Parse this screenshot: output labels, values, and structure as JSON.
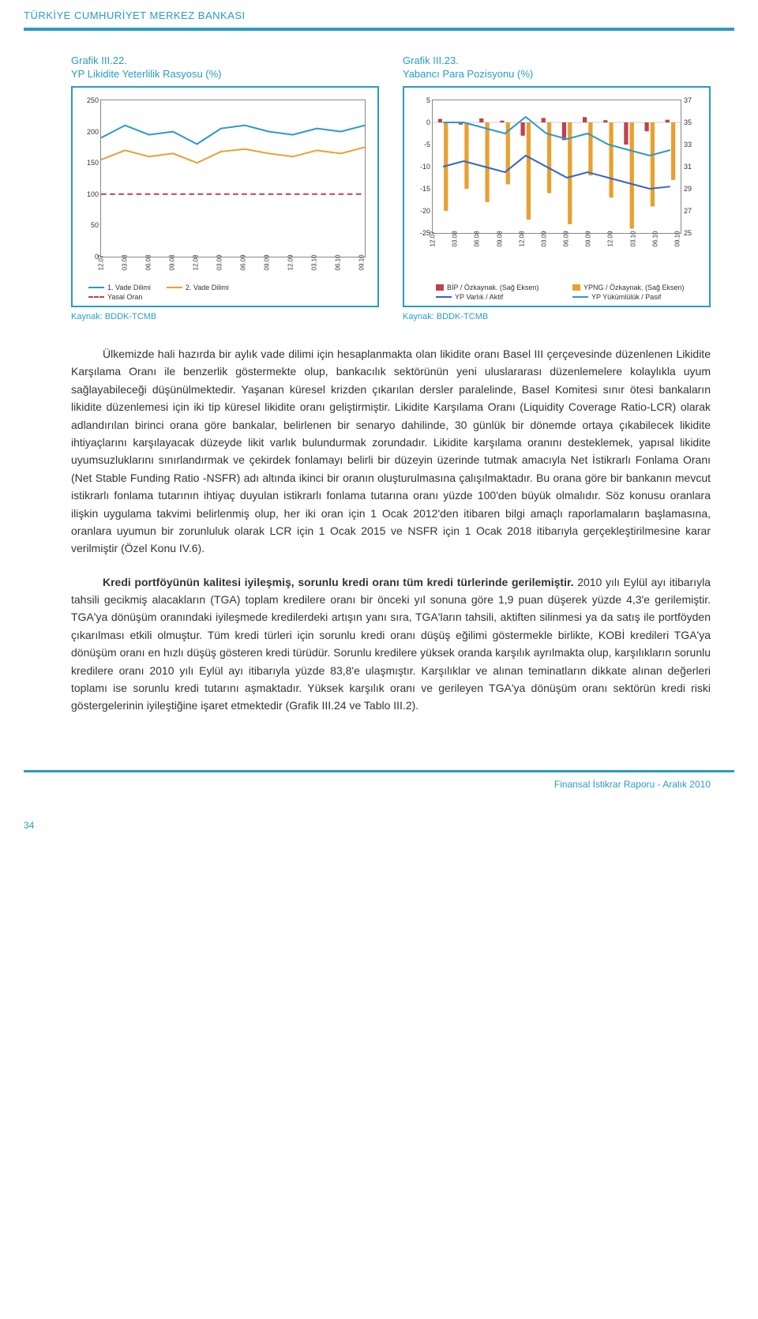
{
  "header": {
    "text": "TÜRKİYE CUMHURİYET MERKEZ BANKASI"
  },
  "chartLeft": {
    "titleMain": "Grafik III.22.",
    "titleSub": "YP Likidite Yeterlilik Rasyosu (%)",
    "type": "line",
    "ylim": [
      0,
      250
    ],
    "yticks": [
      "250",
      "200",
      "150",
      "100",
      "50",
      "0"
    ],
    "xlabels": [
      "12.07",
      "03.08",
      "06.08",
      "09.08",
      "12.08",
      "03.09",
      "06.09",
      "09.09",
      "12.09",
      "03.10",
      "06.10",
      "09.10"
    ],
    "series": [
      {
        "name": "1. Vade Dilimi",
        "color": "#2a9bc7",
        "values": [
          190,
          210,
          195,
          200,
          180,
          205,
          210,
          200,
          195,
          205,
          200,
          210
        ],
        "dashed": false
      },
      {
        "name": "2. Vade Dilimi",
        "color": "#e8a030",
        "values": [
          155,
          170,
          160,
          165,
          150,
          168,
          172,
          165,
          160,
          170,
          165,
          175
        ],
        "dashed": false
      },
      {
        "name": "Yasal Oran",
        "color": "#c04050",
        "values": [
          100,
          100,
          100,
          100,
          100,
          100,
          100,
          100,
          100,
          100,
          100,
          100
        ],
        "dashed": true
      }
    ],
    "legend": [
      {
        "label": "1. Vade Dilimi",
        "color": "#2a9bc7",
        "dashed": false
      },
      {
        "label": "2. Vade Dilimi",
        "color": "#e8a030",
        "dashed": false
      },
      {
        "label": "Yasal Oran",
        "color": "#c04050",
        "dashed": true
      }
    ],
    "source": "Kaynak: BDDK-TCMB",
    "background": "#ffffff",
    "border_color": "#2a9bc7"
  },
  "chartRight": {
    "titleMain": "Grafik III.23.",
    "titleSub": "Yabancı Para Pozisyonu (%)",
    "type": "bar+line",
    "ylimLeft": [
      -25,
      5
    ],
    "ylimRight": [
      25,
      37
    ],
    "yticksLeft": [
      "5",
      "0",
      "-5",
      "-10",
      "-15",
      "-20",
      "-25"
    ],
    "yticksRight": [
      "37",
      "35",
      "33",
      "31",
      "29",
      "27",
      "25"
    ],
    "xlabels": [
      "12.07",
      "03.08",
      "06.08",
      "09.08",
      "12.08",
      "03.09",
      "06.09",
      "09.09",
      "12.09",
      "03.10",
      "06.10",
      "09.10"
    ],
    "bars": [
      {
        "name": "BİP / Özkaynak. (Sağ Eksen)",
        "color": "#c04050",
        "values": [
          0.8,
          -0.5,
          0.9,
          0.4,
          -3.0,
          1.0,
          -4.0,
          1.2,
          0.5,
          -5.0,
          -2.0,
          0.6
        ]
      },
      {
        "name": "YPNG / Özkaynak. (Sağ Eksen)",
        "color": "#e8a030",
        "values": [
          -20,
          -15,
          -18,
          -14,
          -22,
          -16,
          -23,
          -12,
          -17,
          -24,
          -19,
          -13
        ]
      }
    ],
    "lines": [
      {
        "name": "YP Varlık / Aktif",
        "color": "#3366cc",
        "values": [
          31,
          31.5,
          31,
          30.5,
          32,
          31,
          30,
          30.5,
          30,
          29.5,
          29,
          29.2
        ]
      },
      {
        "name": "YP Yükümlülük / Pasif",
        "color": "#2a9bc7",
        "values": [
          35,
          35,
          34.5,
          34,
          35.5,
          34,
          33.5,
          34,
          33,
          32.5,
          32,
          32.5
        ]
      }
    ],
    "legend": [
      {
        "label": "BİP / Özkaynak. (Sağ Eksen)",
        "color": "#c04050",
        "type": "bar"
      },
      {
        "label": "YPNG / Özkaynak. (Sağ Eksen)",
        "color": "#e8a030",
        "type": "bar"
      },
      {
        "label": "YP Varlık / Aktif",
        "color": "#3366cc",
        "type": "line"
      },
      {
        "label": "YP Yükümlülük / Pasif",
        "color": "#2a9bc7",
        "type": "line"
      }
    ],
    "source": "Kaynak: BDDK-TCMB",
    "background": "#ffffff",
    "border_color": "#2a9bc7"
  },
  "paragraph1": "Ülkemizde hali hazırda bir aylık vade dilimi için hesaplanmakta olan likidite oranı Basel III çerçevesinde düzenlenen Likidite Karşılama Oranı ile benzerlik göstermekte olup, bankacılık sektörünün yeni uluslararası düzenlemelere kolaylıkla uyum sağlayabileceği düşünülmektedir. Yaşanan küresel krizden çıkarılan dersler paralelinde, Basel Komitesi sınır ötesi bankaların likidite düzenlemesi için iki tip küresel likidite oranı geliştirmiştir. Likidite Karşılama Oranı (Liquidity Coverage Ratio-LCR) olarak adlandırılan birinci orana göre bankalar, belirlenen bir senaryo dahilinde, 30 günlük bir dönemde ortaya çıkabilecek likidite ihtiyaçlarını karşılayacak düzeyde likit varlık bulundurmak zorundadır. Likidite karşılama oranını desteklemek, yapısal likidite uyumsuzluklarını sınırlandırmak ve çekirdek fonlamayı belirli bir düzeyin üzerinde tutmak amacıyla Net İstikrarlı Fonlama Oranı (Net Stable Funding Ratio -NSFR) adı altında ikinci bir oranın oluşturulmasına çalışılmaktadır. Bu orana göre bir bankanın mevcut istikrarlı fonlama tutarının ihtiyaç duyulan istikrarlı fonlama tutarına oranı yüzde 100'den büyük olmalıdır. Söz konusu oranlara ilişkin uygulama takvimi belirlenmiş olup, her iki oran için 1 Ocak 2012'den itibaren bilgi amaçlı raporlamaların başlamasına, oranlara uyumun bir zorunluluk olarak LCR için 1 Ocak 2015 ve NSFR için 1 Ocak 2018 itibarıyla gerçekleştirilmesine karar verilmiştir (Özel Konu IV.6).",
  "paragraph2Lead": "Kredi portföyünün kalitesi iyileşmiş, sorunlu kredi oranı tüm kredi türlerinde gerilemiştir.",
  "paragraph2Rest": " 2010 yılı Eylül ayı itibarıyla tahsili gecikmiş alacakların (TGA) toplam kredilere oranı bir önceki yıl sonuna göre 1,9 puan düşerek yüzde 4,3'e gerilemiştir. TGA'ya dönüşüm oranındaki iyileşmede kredilerdeki artışın yanı sıra, TGA'ların tahsili, aktiften silinmesi ya da satış ile portföyden çıkarılması etkili olmuştur. Tüm kredi türleri için sorunlu kredi oranı düşüş eğilimi göstermekle birlikte, KOBİ kredileri TGA'ya dönüşüm oranı en hızlı düşüş gösteren kredi türüdür. Sorunlu kredilere yüksek oranda karşılık ayrılmakta olup, karşılıkların sorunlu kredilere oranı 2010 yılı Eylül ayı itibarıyla yüzde 83,8'e ulaşmıştır. Karşılıklar ve alınan teminatların dikkate alınan değerleri toplamı ise sorunlu kredi tutarını aşmaktadır. Yüksek karşılık oranı ve gerileyen TGA'ya dönüşüm oranı sektörün kredi riski göstergelerinin iyileştiğine işaret etmektedir (Grafik III.24 ve Tablo III.2).",
  "footer": {
    "right": "Finansal İstikrar Raporu - Aralık 2010",
    "pageNum": "34"
  }
}
